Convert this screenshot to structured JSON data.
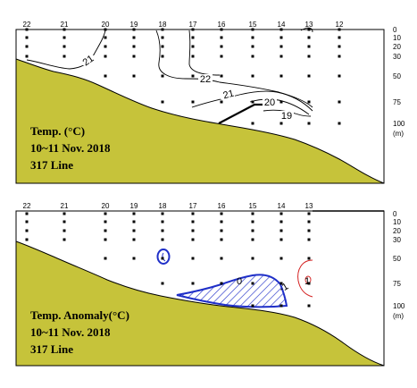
{
  "chart_data": [
    {
      "type": "contour",
      "station_labels": [
        "22",
        "21",
        "20",
        "19",
        "18",
        "17",
        "16",
        "15",
        "14",
        "13",
        "12"
      ],
      "depth_ticks": [
        0,
        10,
        20,
        30,
        50,
        75,
        100
      ],
      "depth_unit": "(m)",
      "title_lines": [
        "Temp. (°C)",
        "10~11 Nov. 2018",
        "317 Line"
      ],
      "contour_labels": [
        "21",
        "22",
        "21",
        "20",
        "19"
      ],
      "colors": {
        "terrain": "#c6c33a",
        "contour": "#000000"
      }
    },
    {
      "type": "contour",
      "station_labels": [
        "22",
        "21",
        "20",
        "19",
        "18",
        "17",
        "16",
        "15",
        "14",
        "13"
      ],
      "depth_ticks": [
        0,
        10,
        20,
        30,
        50,
        75,
        100
      ],
      "depth_unit": "(m)",
      "title_lines": [
        "Temp. Anomaly(°C)",
        "10~11 Nov. 2018",
        "317 Line"
      ],
      "contour_labels": [
        "0",
        "-1",
        "1"
      ],
      "colors": {
        "terrain": "#c6c33a",
        "negative": "#1f2fc8",
        "positive": "#d42020"
      }
    }
  ]
}
